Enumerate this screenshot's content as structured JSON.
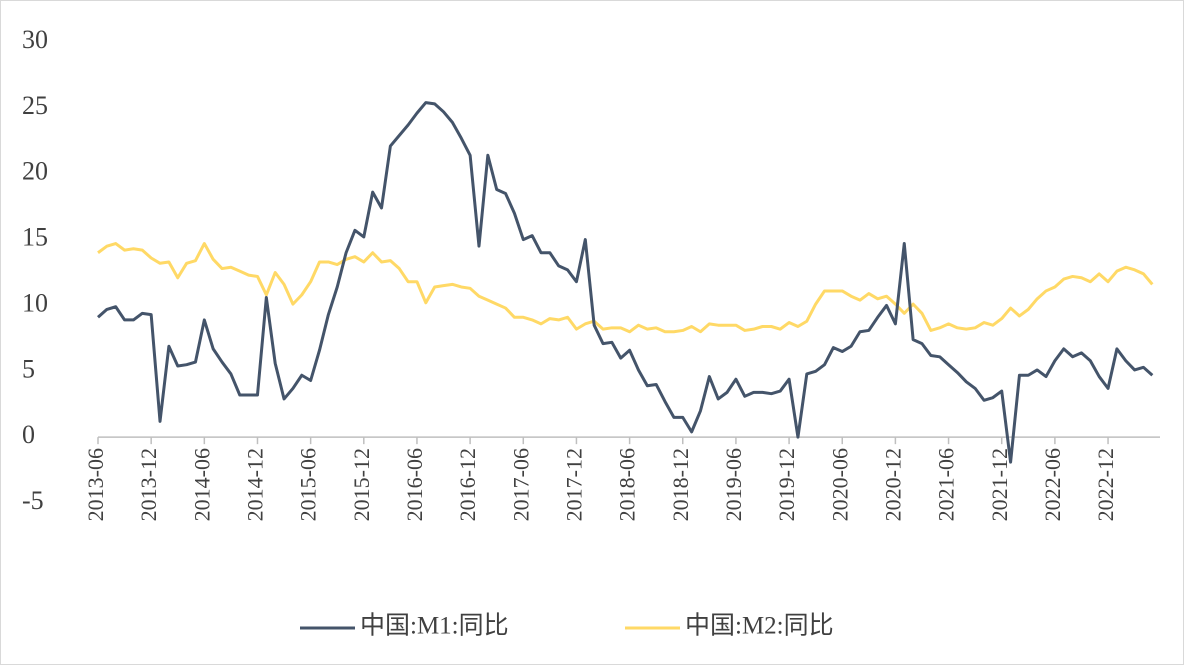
{
  "chart_data": {
    "type": "line",
    "categories": [
      "2013-06",
      null,
      null,
      null,
      null,
      null,
      "2013-12",
      null,
      null,
      null,
      null,
      null,
      "2014-06",
      null,
      null,
      null,
      null,
      null,
      "2014-12",
      null,
      null,
      null,
      null,
      null,
      "2015-06",
      null,
      null,
      null,
      null,
      null,
      "2015-12",
      null,
      null,
      null,
      null,
      null,
      "2016-06",
      null,
      null,
      null,
      null,
      null,
      "2016-12",
      null,
      null,
      null,
      null,
      null,
      "2017-06",
      null,
      null,
      null,
      null,
      null,
      "2017-12",
      null,
      null,
      null,
      null,
      null,
      "2018-06",
      null,
      null,
      null,
      null,
      null,
      "2018-12",
      null,
      null,
      null,
      null,
      null,
      "2019-06",
      null,
      null,
      null,
      null,
      null,
      "2019-12",
      null,
      null,
      null,
      null,
      null,
      "2020-06",
      null,
      null,
      null,
      null,
      null,
      "2020-12",
      null,
      null,
      null,
      null,
      null,
      "2021-06",
      null,
      null,
      null,
      null,
      null,
      "2021-12",
      null,
      null,
      null,
      null,
      null,
      "2022-06",
      null,
      null,
      null,
      null,
      null,
      "2022-12",
      null,
      null,
      null,
      null,
      null
    ],
    "series": [
      {
        "name": "中国:M1:同比",
        "color": "#44546a",
        "values": [
          9.1,
          9.7,
          9.9,
          8.9,
          8.9,
          9.4,
          9.3,
          1.2,
          6.9,
          5.4,
          5.5,
          5.7,
          8.9,
          6.7,
          5.7,
          4.8,
          3.2,
          3.2,
          3.2,
          10.6,
          5.6,
          2.9,
          3.7,
          4.7,
          4.3,
          6.6,
          9.3,
          11.4,
          14.0,
          15.7,
          15.2,
          18.6,
          17.4,
          22.1,
          22.9,
          23.7,
          24.6,
          25.4,
          25.3,
          24.7,
          23.9,
          22.7,
          21.4,
          14.5,
          21.4,
          18.8,
          18.5,
          17.0,
          15.0,
          15.3,
          14.0,
          14.0,
          13.0,
          12.7,
          11.8,
          15.0,
          8.5,
          7.1,
          7.2,
          6.0,
          6.6,
          5.1,
          3.9,
          4.0,
          2.7,
          1.5,
          1.5,
          0.4,
          2.0,
          4.6,
          2.9,
          3.4,
          4.4,
          3.1,
          3.4,
          3.4,
          3.3,
          3.5,
          4.4,
          0.0,
          4.8,
          5.0,
          5.5,
          6.8,
          6.5,
          6.9,
          8.0,
          8.1,
          9.1,
          10.0,
          8.6,
          14.7,
          7.4,
          7.1,
          6.2,
          6.1,
          5.5,
          4.9,
          4.2,
          3.7,
          2.8,
          3.0,
          3.5,
          -1.9,
          4.7,
          4.7,
          5.1,
          4.6,
          5.8,
          6.7,
          6.1,
          6.4,
          5.8,
          4.6,
          3.7,
          6.7,
          5.8,
          5.1,
          5.3,
          4.7
        ]
      },
      {
        "name": "中国:M2:同比",
        "color": "#ffd966",
        "values": [
          14.0,
          14.5,
          14.7,
          14.2,
          14.3,
          14.2,
          13.6,
          13.2,
          13.3,
          12.1,
          13.2,
          13.4,
          14.7,
          13.5,
          12.8,
          12.9,
          12.6,
          12.3,
          12.2,
          10.8,
          12.5,
          11.6,
          10.1,
          10.8,
          11.8,
          13.3,
          13.3,
          13.1,
          13.5,
          13.7,
          13.3,
          14.0,
          13.3,
          13.4,
          12.8,
          11.8,
          11.8,
          10.2,
          11.4,
          11.5,
          11.6,
          11.4,
          11.3,
          10.7,
          10.4,
          10.1,
          9.8,
          9.1,
          9.1,
          8.9,
          8.6,
          9.0,
          8.9,
          9.1,
          8.2,
          8.6,
          8.8,
          8.2,
          8.3,
          8.3,
          8.0,
          8.5,
          8.2,
          8.3,
          8.0,
          8.0,
          8.1,
          8.4,
          8.0,
          8.6,
          8.5,
          8.5,
          8.5,
          8.1,
          8.2,
          8.4,
          8.4,
          8.2,
          8.7,
          8.4,
          8.8,
          10.1,
          11.1,
          11.1,
          11.1,
          10.7,
          10.4,
          10.9,
          10.5,
          10.7,
          10.1,
          9.4,
          10.1,
          9.4,
          8.1,
          8.3,
          8.6,
          8.3,
          8.2,
          8.3,
          8.7,
          8.5,
          9.0,
          9.8,
          9.2,
          9.7,
          10.5,
          11.1,
          11.4,
          12.0,
          12.2,
          12.1,
          11.8,
          12.4,
          11.8,
          12.6,
          12.9,
          12.7,
          12.4,
          11.6
        ]
      }
    ],
    "ylim": [
      -5,
      30
    ],
    "yticks": [
      30,
      25,
      20,
      15,
      10,
      5,
      0,
      -5
    ],
    "legend": "bottom"
  }
}
